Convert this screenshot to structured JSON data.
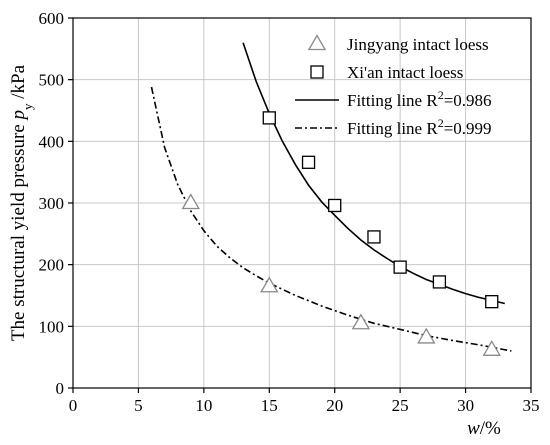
{
  "chart_data": {
    "type": "scatter",
    "title": "",
    "xlabel": {
      "main": "w",
      "unit": "/%"
    },
    "ylabel": {
      "main": "The structural yield pressure ",
      "symbol": "p",
      "subscript": "y",
      "unit": " /kPa"
    },
    "xlim": [
      0,
      35
    ],
    "ylim": [
      0,
      600
    ],
    "xticks": [
      0,
      5,
      10,
      15,
      20,
      25,
      30,
      35
    ],
    "yticks": [
      0,
      100,
      200,
      300,
      400,
      500,
      600
    ],
    "grid": true,
    "legend_position": "top-right",
    "series": [
      {
        "name": "Jingyang intact loess",
        "kind": "points",
        "marker": "triangle",
        "color": "#8a8a8a",
        "x": [
          9,
          15,
          22,
          27,
          32
        ],
        "y": [
          300,
          165,
          105,
          82,
          62
        ]
      },
      {
        "name": "Xi'an intact loess",
        "kind": "points",
        "marker": "square",
        "color": "#000000",
        "x": [
          15,
          18,
          20,
          23,
          25,
          28,
          32
        ],
        "y": [
          438,
          366,
          296,
          245,
          196,
          172,
          140
        ]
      },
      {
        "name": "Fitting line R",
        "name_sup": "2",
        "name_suffix": "=0.986",
        "kind": "line",
        "style": "solid",
        "color": "#000000",
        "x": [
          13,
          14,
          15,
          16,
          17,
          18,
          19,
          20,
          21,
          22,
          23,
          24,
          25,
          26,
          27,
          28,
          29,
          30,
          31,
          32,
          33
        ],
        "y": [
          560,
          497,
          445,
          400,
          362,
          329,
          302,
          280,
          259,
          240,
          224,
          210,
          197,
          186,
          176,
          168,
          160,
          153,
          147,
          142,
          137
        ]
      },
      {
        "name": "Fitting line R",
        "name_sup": "2",
        "name_suffix": "=0.999",
        "kind": "line",
        "style": "dash-dot",
        "color": "#000000",
        "x": [
          6,
          7,
          8,
          9,
          10,
          11,
          12,
          13,
          14,
          15,
          17,
          19,
          21,
          23,
          25,
          27,
          29,
          31,
          33.5
        ],
        "y": [
          488,
          390,
          330,
          287,
          255,
          230,
          211,
          195,
          182,
          170,
          150,
          133,
          118,
          105,
          95,
          85,
          77,
          70,
          60
        ]
      }
    ]
  }
}
